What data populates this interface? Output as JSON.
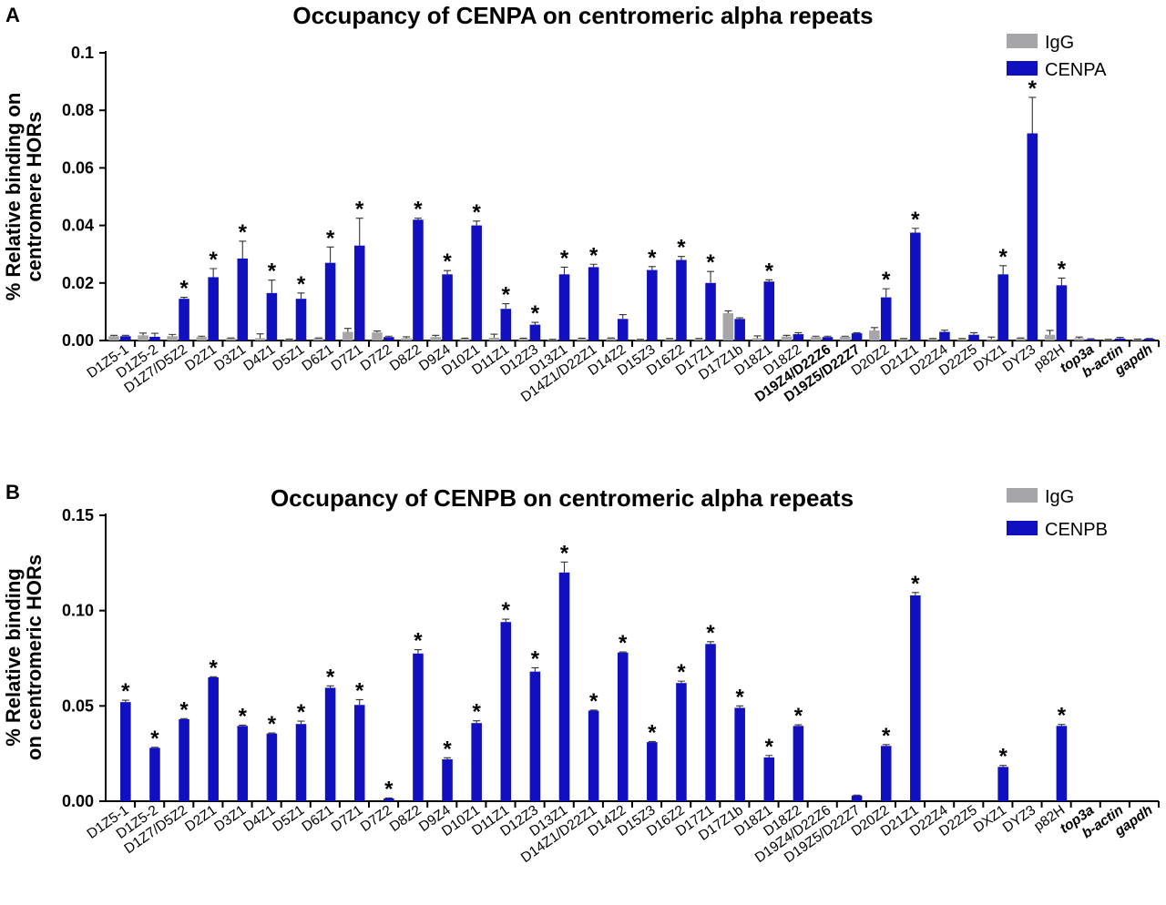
{
  "chart_data": [
    {
      "type": "bar",
      "panel": "A",
      "title": "Occupancy of CENPA on centromeric alpha repeats",
      "ylabel_lines": [
        "% Relative binding on",
        "centromere HORs"
      ],
      "ylim": [
        0,
        0.1
      ],
      "yticks": [
        "0.00",
        "0.02",
        "0.04",
        "0.06",
        "0.08",
        "0.1"
      ],
      "ytick_values": [
        0,
        0.02,
        0.04,
        0.06,
        0.08,
        0.1
      ],
      "legend": {
        "placement": "top-right",
        "entries": [
          "IgG",
          "CENPA"
        ]
      },
      "colors": {
        "IgG": "#a6a6a8",
        "target": "#1010c0"
      },
      "categories": [
        "D1Z5-1",
        "D1Z5-2",
        "D1Z7/D5Z2",
        "D2Z1",
        "D3Z1",
        "D4Z1",
        "D5Z1",
        "D6Z1",
        "D7Z1",
        "D7Z2",
        "D8Z2",
        "D9Z4",
        "D10Z1",
        "D11Z1",
        "D12Z3",
        "D13Z1",
        "D14Z1/D22Z1",
        "D14Z2",
        "D15Z3",
        "D16Z2",
        "D17Z1",
        "D17Z1b",
        "D18Z1",
        "D18Z2",
        "D19Z4/D22Z6",
        "D19Z5/D22Z7",
        "D20Z2",
        "D21Z1",
        "D22Z4",
        "D22Z5",
        "DXZ1",
        "DYZ3",
        "p82H",
        "top3a",
        "b-actin",
        "gapdh"
      ],
      "category_styles": [
        "n",
        "n",
        "n",
        "n",
        "n",
        "n",
        "n",
        "n",
        "n",
        "n",
        "n",
        "n",
        "n",
        "n",
        "n",
        "n",
        "n",
        "n",
        "n",
        "n",
        "n",
        "n",
        "n",
        "n",
        "b",
        "b",
        "n",
        "n",
        "n",
        "n",
        "n",
        "n",
        "n",
        "i",
        "i",
        "i"
      ],
      "series": [
        {
          "name": "IgG",
          "values": [
            0.0015,
            0.0018,
            0.0015,
            0.0012,
            0.0007,
            0.0008,
            0.0003,
            0.0007,
            0.003,
            0.0028,
            0.0008,
            0.0012,
            0.0006,
            0.001,
            0.0006,
            0.0003,
            0.0006,
            0.0007,
            0.0003,
            0.0005,
            0.0005,
            0.0095,
            0.0008,
            0.0014,
            0.0012,
            0.0013,
            0.0035,
            0.0005,
            0.0005,
            0.0005,
            0.0005,
            0.0007,
            0.002,
            0.0008,
            0.0003,
            0.0004
          ],
          "errors": [
            0.0003,
            0.0008,
            0.0006,
            0.0003,
            0.0002,
            0.0015,
            0.0002,
            0.0002,
            0.0012,
            0.0005,
            0.0005,
            0.0006,
            0.0002,
            0.0012,
            0.0002,
            0.0001,
            0.0002,
            0.0002,
            0.0001,
            0.0002,
            0.0002,
            0.0008,
            0.0008,
            0.0004,
            0.0003,
            0.0002,
            0.001,
            0.0002,
            0.0002,
            0.0002,
            0.0007,
            0.0002,
            0.0015,
            0.0004,
            0.0001,
            0.0001
          ]
        },
        {
          "name": "CENPA",
          "values": [
            0.0015,
            0.0013,
            0.0145,
            0.022,
            0.0285,
            0.0165,
            0.0145,
            0.027,
            0.033,
            0.0012,
            0.042,
            0.023,
            0.04,
            0.011,
            0.0055,
            0.023,
            0.0255,
            0.0075,
            0.0245,
            0.028,
            0.02,
            0.0075,
            0.0205,
            0.0022,
            0.0012,
            0.0025,
            0.015,
            0.0375,
            0.003,
            0.002,
            0.023,
            0.072,
            0.0192,
            0.0004,
            0.0007,
            0.0006
          ],
          "errors": [
            0.0003,
            0.0012,
            0.0005,
            0.003,
            0.006,
            0.0045,
            0.002,
            0.0055,
            0.0095,
            0.0003,
            0.0005,
            0.0013,
            0.0015,
            0.0018,
            0.0008,
            0.0025,
            0.001,
            0.0015,
            0.0012,
            0.0012,
            0.004,
            0.0004,
            0.0006,
            0.0005,
            0.0003,
            0.0002,
            0.003,
            0.0015,
            0.0006,
            0.0007,
            0.003,
            0.0125,
            0.0025,
            0.0002,
            0.0004,
            0.0001
          ]
        }
      ],
      "significant": [
        false,
        false,
        true,
        true,
        true,
        true,
        true,
        true,
        true,
        false,
        true,
        true,
        true,
        true,
        true,
        true,
        true,
        false,
        true,
        true,
        true,
        false,
        true,
        false,
        false,
        false,
        true,
        true,
        false,
        false,
        true,
        true,
        true,
        false,
        false,
        false
      ],
      "significance_marker": "*"
    },
    {
      "type": "bar",
      "panel": "B",
      "title": "Occupancy of CENPB on centromeric alpha repeats",
      "ylabel_lines": [
        "% Relative binding",
        "on centromeric HORs"
      ],
      "ylim": [
        0,
        0.15
      ],
      "yticks": [
        "0.00",
        "0.05",
        "0.10",
        "0.15"
      ],
      "ytick_values": [
        0,
        0.05,
        0.1,
        0.15
      ],
      "legend": {
        "placement": "top-right",
        "entries": [
          "IgG",
          "CENPB"
        ]
      },
      "colors": {
        "IgG": "#a6a6a8",
        "target": "#1010c0"
      },
      "categories": [
        "D1Z5-1",
        "D1Z5-2",
        "D1Z7/D5Z2",
        "D2Z1",
        "D3Z1",
        "D4Z1",
        "D5Z1",
        "D6Z1",
        "D7Z1",
        "D7Z2",
        "D8Z2",
        "D9Z4",
        "D10Z1",
        "D11Z1",
        "D12Z3",
        "D13Z1",
        "D14Z1/D22Z1",
        "D14Z2",
        "D15Z3",
        "D16Z2",
        "D17Z1",
        "D17Z1b",
        "D18Z1",
        "D18Z2",
        "D19Z4/D22Z6",
        "D19Z5/D22Z7",
        "D20Z2",
        "D21Z1",
        "D22Z4",
        "D22Z5",
        "DXZ1",
        "DYZ3",
        "p82H",
        "top3a",
        "b-actin",
        "gapdh"
      ],
      "category_styles": [
        "n",
        "n",
        "n",
        "n",
        "n",
        "n",
        "n",
        "n",
        "n",
        "n",
        "n",
        "n",
        "n",
        "n",
        "n",
        "n",
        "n",
        "n",
        "n",
        "n",
        "n",
        "n",
        "n",
        "n",
        "n",
        "n",
        "n",
        "n",
        "n",
        "n",
        "n",
        "n",
        "n",
        "i",
        "i",
        "i"
      ],
      "series": [
        {
          "name": "IgG",
          "values": [
            0,
            0,
            0,
            0,
            0,
            0,
            0,
            0,
            0,
            0,
            0,
            0,
            0,
            0,
            0,
            0,
            0,
            0,
            0,
            0,
            0,
            0,
            0,
            0,
            0,
            0,
            0,
            0,
            0,
            0,
            0,
            0,
            0,
            0,
            0,
            0
          ],
          "errors": [
            0,
            0,
            0,
            0,
            0,
            0,
            0,
            0,
            0,
            0,
            0,
            0,
            0,
            0,
            0,
            0,
            0,
            0,
            0,
            0,
            0,
            0,
            0,
            0,
            0,
            0,
            0,
            0,
            0,
            0,
            0,
            0,
            0,
            0,
            0,
            0
          ]
        },
        {
          "name": "CENPB",
          "values": [
            0.052,
            0.028,
            0.043,
            0.065,
            0.0395,
            0.0355,
            0.0405,
            0.0595,
            0.0505,
            0.0015,
            0.0775,
            0.022,
            0.041,
            0.094,
            0.068,
            0.12,
            0.0475,
            0.078,
            0.031,
            0.062,
            0.0825,
            0.049,
            0.023,
            0.0395,
            0,
            0.003,
            0.029,
            0.108,
            0,
            0,
            0.018,
            0,
            0.0395,
            0,
            0,
            0
          ],
          "errors": [
            0.001,
            0.0003,
            0.0003,
            0.0003,
            0.0004,
            0.0003,
            0.0015,
            0.001,
            0.0028,
            0.0002,
            0.002,
            0.0008,
            0.0012,
            0.0015,
            0.002,
            0.0055,
            0.0003,
            0.0003,
            0.0003,
            0.001,
            0.0012,
            0.001,
            0.001,
            0.0006,
            0,
            0.0002,
            0.0007,
            0.0015,
            0,
            0,
            0.0008,
            0,
            0.0008,
            0,
            0,
            0
          ]
        }
      ],
      "significant": [
        true,
        true,
        true,
        true,
        true,
        true,
        true,
        true,
        true,
        true,
        true,
        true,
        true,
        true,
        true,
        true,
        true,
        true,
        true,
        true,
        true,
        true,
        true,
        true,
        false,
        false,
        true,
        true,
        false,
        false,
        true,
        false,
        true,
        false,
        false,
        false
      ],
      "significance_marker": "*"
    }
  ]
}
